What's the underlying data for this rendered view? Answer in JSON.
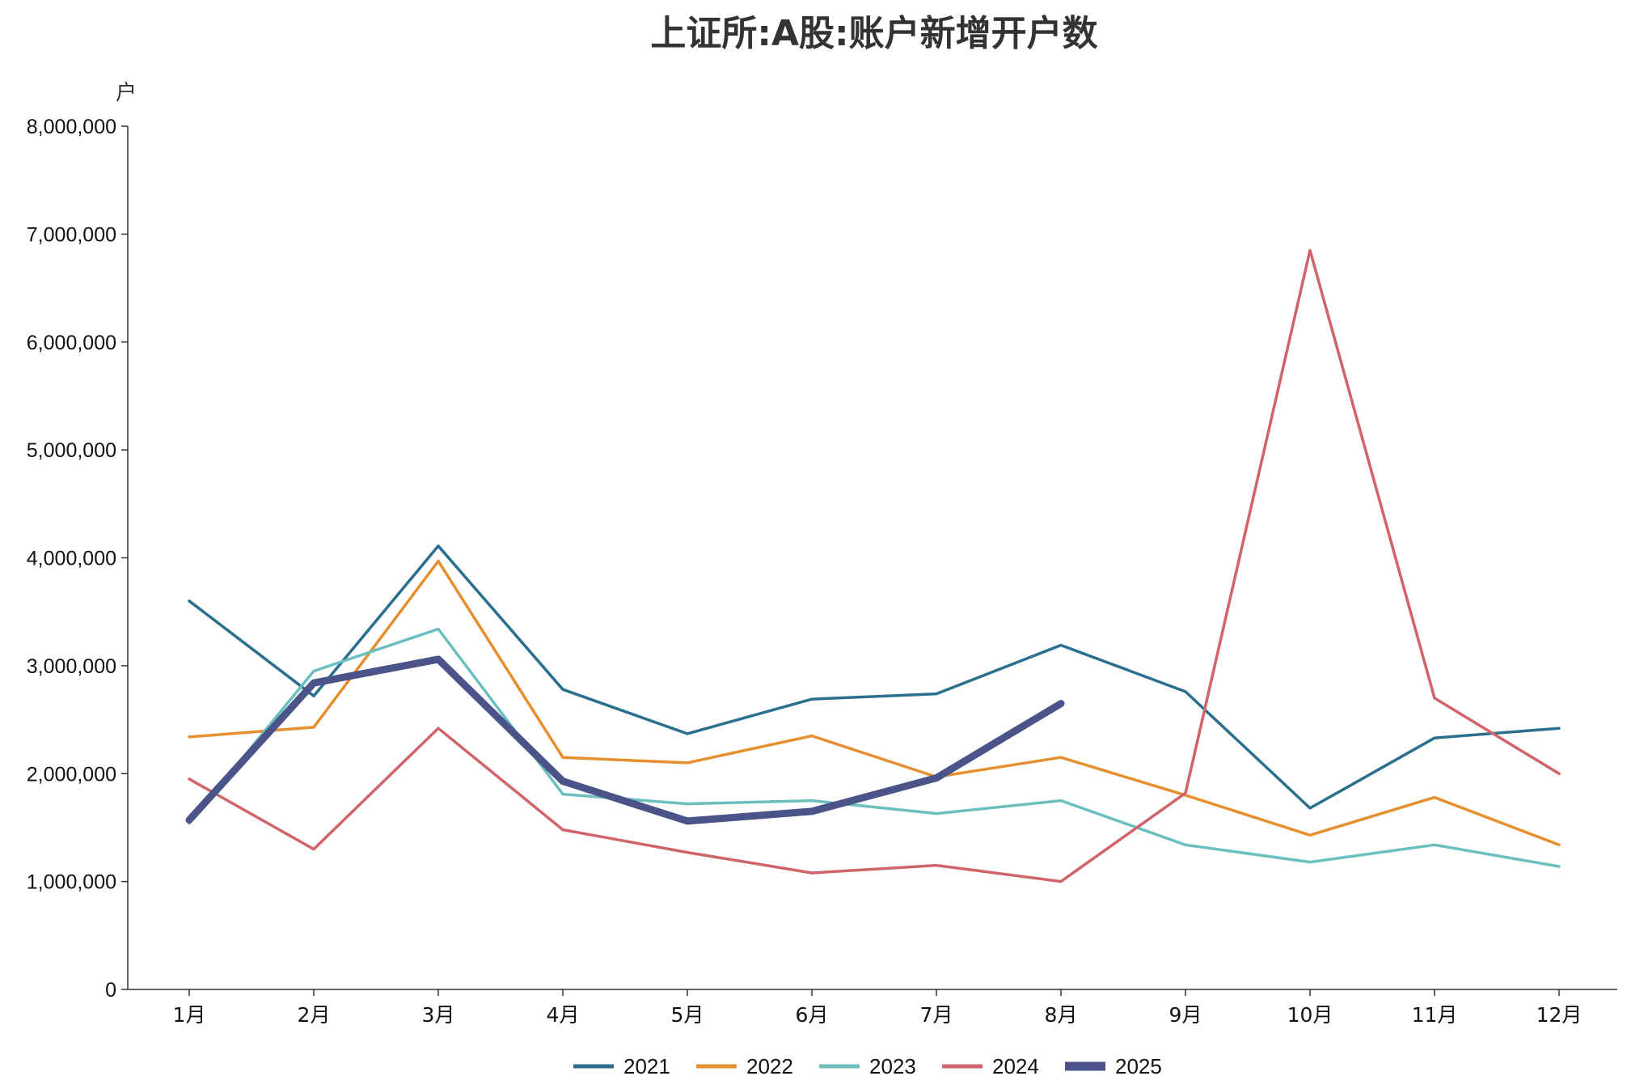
{
  "chart_data": {
    "type": "line",
    "title": "上证所:A股:账户新增开户数",
    "y_unit": "户",
    "categories": [
      "1月",
      "2月",
      "3月",
      "4月",
      "5月",
      "6月",
      "7月",
      "8月",
      "9月",
      "10月",
      "11月",
      "12月"
    ],
    "y_ticks": [
      "0",
      "1,000,000",
      "2,000,000",
      "3,000,000",
      "4,000,000",
      "5,000,000",
      "6,000,000",
      "7,000,000",
      "8,000,000"
    ],
    "ylim": [
      0,
      8000000
    ],
    "grid": false,
    "legend_position": "bottom",
    "series": [
      {
        "name": "2021",
        "color": "#2a6f8e",
        "emphasis": false,
        "values": [
          3600000,
          2720000,
          4110000,
          2780000,
          2370000,
          2690000,
          2740000,
          3190000,
          2760000,
          1680000,
          2330000,
          2420000
        ]
      },
      {
        "name": "2022",
        "color": "#e58f2e",
        "emphasis": false,
        "values": [
          2340000,
          2430000,
          3970000,
          2150000,
          2100000,
          2350000,
          1970000,
          2150000,
          1800000,
          1430000,
          1780000,
          1340000
        ]
      },
      {
        "name": "2023",
        "color": "#6bbfbf",
        "emphasis": false,
        "values": [
          1540000,
          2950000,
          3340000,
          1810000,
          1720000,
          1750000,
          1630000,
          1750000,
          1340000,
          1180000,
          1340000,
          1140000
        ]
      },
      {
        "name": "2024",
        "color": "#d0646a",
        "emphasis": false,
        "values": [
          1950000,
          1300000,
          2420000,
          1480000,
          1270000,
          1080000,
          1150000,
          1000000,
          1820000,
          6850000,
          2700000,
          2000000
        ]
      },
      {
        "name": "2025",
        "color": "#4a5489",
        "emphasis": true,
        "values": [
          1570000,
          2840000,
          3060000,
          1930000,
          1560000,
          1650000,
          1960000,
          2650000,
          null,
          null,
          null,
          null
        ]
      }
    ]
  }
}
